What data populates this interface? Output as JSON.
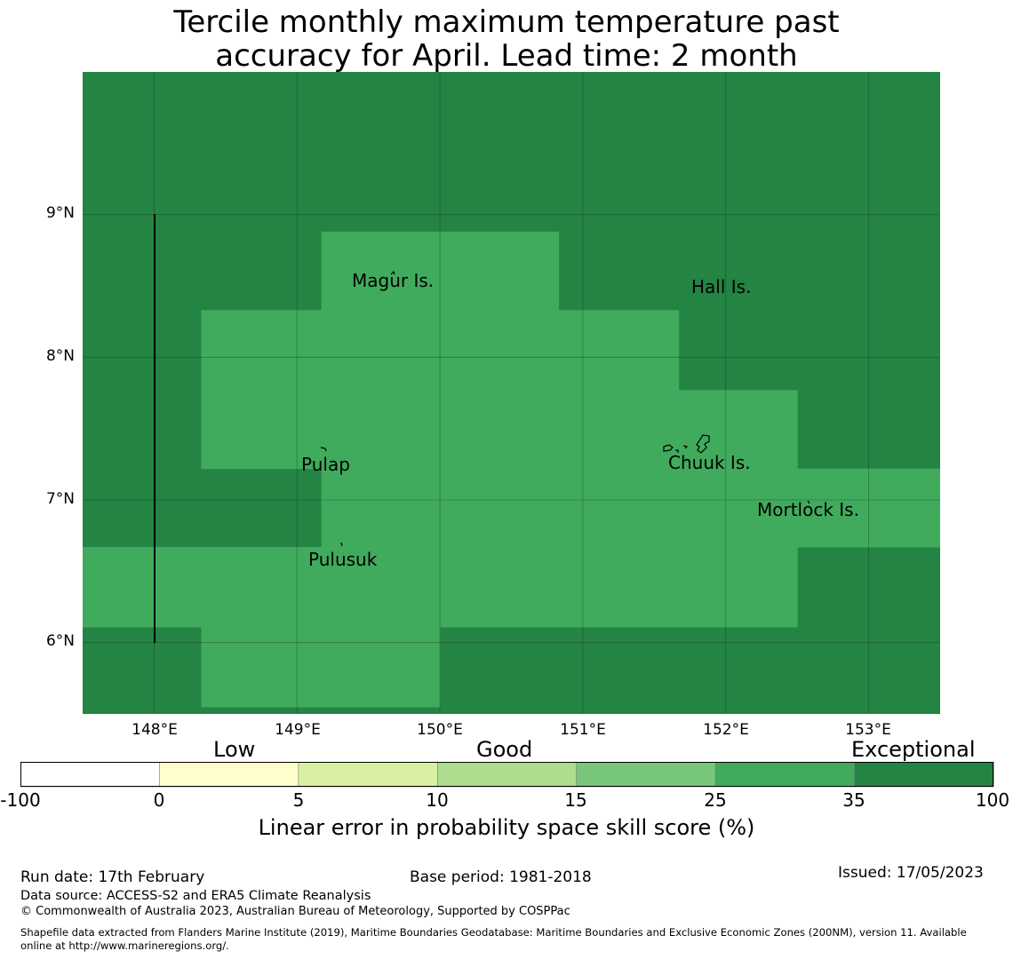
{
  "title": {
    "line1": "Tercile monthly maximum temperature past",
    "line2": "accuracy for April. Lead time: 2 month"
  },
  "map": {
    "lon_range": [
      147.5,
      153.5
    ],
    "lat_range": [
      5.5,
      10.0
    ],
    "lon_ticks": [
      "148°E",
      "149°E",
      "150°E",
      "151°E",
      "152°E",
      "153°E"
    ],
    "lat_ticks": [
      "9°N",
      "8°N",
      "7°N",
      "6°N"
    ],
    "colors": {
      "exceptional": "#238443",
      "good35": "#41ab5d",
      "grid": "#1a3a1a"
    },
    "cells_25_35": [
      {
        "lon": [
          149.17,
          150.83
        ],
        "lat": [
          8.33,
          8.88
        ]
      },
      {
        "lon": [
          148.33,
          151.67
        ],
        "lat": [
          7.77,
          8.33
        ]
      },
      {
        "lon": [
          148.33,
          152.5
        ],
        "lat": [
          7.22,
          7.77
        ]
      },
      {
        "lon": [
          149.17,
          153.5
        ],
        "lat": [
          6.67,
          7.22
        ]
      },
      {
        "lon": [
          147.5,
          152.5
        ],
        "lat": [
          6.11,
          6.67
        ]
      },
      {
        "lon": [
          148.33,
          150.0
        ],
        "lat": [
          5.55,
          6.11
        ]
      }
    ],
    "places": [
      {
        "name": "Magur Is."
      },
      {
        "name": "Hall Is."
      },
      {
        "name": "Pulap"
      },
      {
        "name": "Chuuk Is."
      },
      {
        "name": "Mortlock Is."
      },
      {
        "name": "Pulusuk"
      }
    ]
  },
  "colorbar": {
    "categories": [
      "Low",
      "Good",
      "Exceptional"
    ],
    "bins": [
      "#ffffff",
      "#ffffcc",
      "#d9f0a3",
      "#addd8e",
      "#78c679",
      "#41ab5d",
      "#238443"
    ],
    "ticks": [
      "-100",
      "0",
      "5",
      "10",
      "15",
      "25",
      "35",
      "100"
    ],
    "label": "Linear error in probability space skill score (%)"
  },
  "footer": {
    "run_date": "Run date: 17th February",
    "base_period": "Base period: 1981-2018",
    "issued": "Issued: 17/05/2023",
    "data_source": "Data source: ACCESS-S2 and ERA5 Climate Reanalysis",
    "copyright": "© Commonwealth of Australia 2023, Australian Bureau of Meteorology, Supported by COSPPac",
    "shapefile_line1": "Shapefile data extracted from Flanders Marine Institute (2019), Maritime Boundaries Geodatabase: Maritime Boundaries and Exclusive Economic Zones (200NM), version 11. Available",
    "shapefile_line2": "online at http://www.marineregions.org/."
  }
}
